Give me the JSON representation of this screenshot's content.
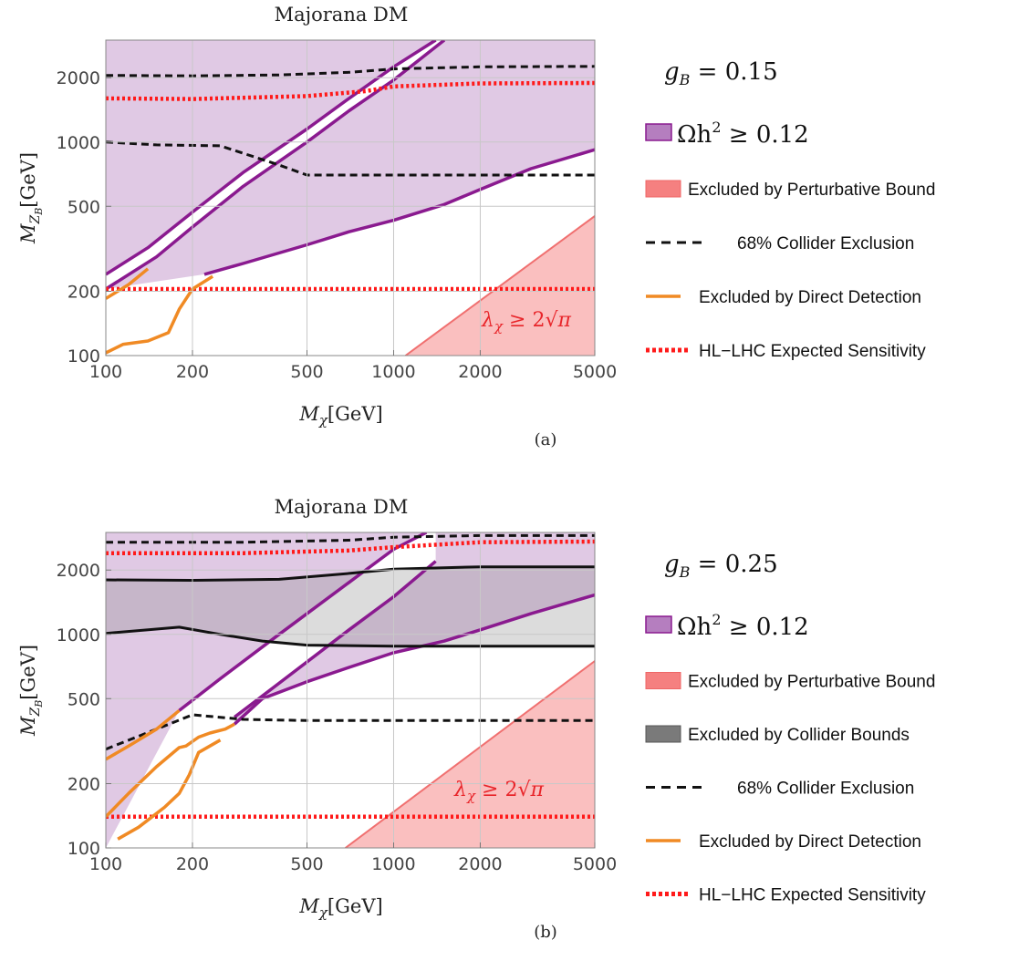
{
  "chart_data": [
    {
      "type": "line",
      "panel": "(a)",
      "title": "Majorana DM",
      "xlabel": "M_χ[GeV]",
      "ylabel": "M_{Z_B}[GeV]",
      "x_scale": "log",
      "y_scale": "log",
      "xlim": [
        100,
        5000
      ],
      "ylim": [
        100,
        3000
      ],
      "x_ticks": [
        "100",
        "200",
        "500",
        "1000",
        "2000",
        "5000"
      ],
      "y_ticks": [
        "100",
        "200",
        "500",
        "1000",
        "2000"
      ],
      "grid": true,
      "legend_position": "right",
      "coupling_label": "g_B = 0.15",
      "annotation": "λ_χ ≥ 2√π",
      "legend": [
        {
          "key": "relic",
          "label": "Ωh² ≥ 0.12",
          "color": "#b57ebf"
        },
        {
          "key": "pert",
          "label": "Excluded by Perturbative Bound",
          "color": "#f58080"
        },
        {
          "key": "coll68",
          "label": "68% Collider Exclusion",
          "color": "#111111"
        },
        {
          "key": "dd",
          "label": "Excluded by Direct Detection",
          "color": "#f08a24"
        },
        {
          "key": "hllhc",
          "label": "HL−LHC Expected Sensitivity",
          "color": "#ff1a1a"
        }
      ],
      "series": [
        {
          "key": "relic_upper_left",
          "x": [
            100,
            140,
            200,
            300,
            500,
            700,
            1000,
            1400
          ],
          "y": [
            240,
            320,
            470,
            720,
            1150,
            1600,
            2250,
            3000
          ]
        },
        {
          "key": "relic_upper_right",
          "x": [
            100,
            150,
            200,
            300,
            500,
            700,
            1000,
            1500
          ],
          "y": [
            205,
            290,
            400,
            620,
            1000,
            1400,
            1950,
            3000
          ]
        },
        {
          "key": "relic_lower",
          "x": [
            220,
            300,
            500,
            700,
            1000,
            1500,
            2000,
            3000,
            5000
          ],
          "y": [
            240,
            270,
            330,
            380,
            430,
            510,
            600,
            750,
            920
          ]
        },
        {
          "key": "coll68_upper",
          "x": [
            100,
            200,
            400,
            700,
            1000,
            2000,
            5000
          ],
          "y": [
            2050,
            2040,
            2060,
            2120,
            2200,
            2250,
            2260
          ]
        },
        {
          "key": "coll68_lower",
          "x": [
            100,
            150,
            250,
            400,
            500,
            1000,
            5000
          ],
          "y": [
            1000,
            970,
            960,
            780,
            700,
            700,
            700
          ]
        },
        {
          "key": "hllhc_upper",
          "x": [
            100,
            200,
            500,
            800,
            1000,
            2000,
            5000
          ],
          "y": [
            1600,
            1590,
            1640,
            1730,
            1820,
            1880,
            1890
          ]
        },
        {
          "key": "hllhc_lower",
          "x": [
            100,
            5000
          ],
          "y": [
            205,
            205
          ]
        },
        {
          "key": "dd_1",
          "x": [
            100,
            120,
            140
          ],
          "y": [
            185,
            215,
            255
          ]
        },
        {
          "key": "dd_2",
          "x": [
            100,
            115,
            140,
            165,
            180,
            200,
            235
          ],
          "y": [
            103,
            113,
            117,
            128,
            165,
            205,
            235
          ]
        }
      ]
    },
    {
      "type": "line",
      "panel": "(b)",
      "title": "Majorana DM",
      "xlabel": "M_χ[GeV]",
      "ylabel": "M_{Z_B}[GeV]",
      "x_scale": "log",
      "y_scale": "log",
      "xlim": [
        100,
        5000
      ],
      "ylim": [
        100,
        3000
      ],
      "x_ticks": [
        "100",
        "200",
        "500",
        "1000",
        "2000",
        "5000"
      ],
      "y_ticks": [
        "100",
        "200",
        "500",
        "1000",
        "2000"
      ],
      "grid": true,
      "legend_position": "right",
      "coupling_label": "g_B = 0.25",
      "annotation": "λ_χ ≥ 2√π",
      "legend": [
        {
          "key": "relic",
          "label": "Ωh² ≥ 0.12",
          "color": "#b57ebf"
        },
        {
          "key": "pert",
          "label": "Excluded by Perturbative Bound",
          "color": "#f58080"
        },
        {
          "key": "collb",
          "label": "Excluded by Collider Bounds",
          "color": "#7a7a7a"
        },
        {
          "key": "coll68",
          "label": "68% Collider Exclusion",
          "color": "#111111"
        },
        {
          "key": "dd",
          "label": "Excluded by Direct Detection",
          "color": "#f08a24"
        },
        {
          "key": "hllhc",
          "label": "HL−LHC Expected Sensitivity",
          "color": "#ff1a1a"
        }
      ],
      "series": [
        {
          "key": "relic_upper_left",
          "x": [
            180,
            250,
            400,
            700,
            1000,
            1300
          ],
          "y": [
            440,
            620,
            1000,
            1750,
            2500,
            3000
          ]
        },
        {
          "key": "relic_upper_right",
          "x": [
            280,
            400,
            700,
            1000,
            1400
          ],
          "y": [
            410,
            590,
            1050,
            1500,
            2200
          ]
        },
        {
          "key": "relic_lower",
          "x": [
            280,
            350,
            500,
            700,
            1000,
            1500,
            2000,
            3000,
            5000
          ],
          "y": [
            380,
            500,
            600,
            700,
            820,
            930,
            1050,
            1250,
            1530
          ]
        },
        {
          "key": "collb_upper",
          "x": [
            100,
            200,
            400,
            700,
            1000,
            2000,
            5000
          ],
          "y": [
            1800,
            1790,
            1810,
            1930,
            2020,
            2070,
            2070
          ]
        },
        {
          "key": "collb_lower",
          "x": [
            100,
            180,
            250,
            350,
            500,
            1000,
            5000
          ],
          "y": [
            1010,
            1080,
            1000,
            930,
            890,
            880,
            880
          ]
        },
        {
          "key": "coll68_upper",
          "x": [
            100,
            300,
            700,
            1000,
            2000,
            5000
          ],
          "y": [
            2700,
            2700,
            2760,
            2850,
            2900,
            2900
          ]
        },
        {
          "key": "coll68_lower",
          "x": [
            100,
            150,
            200,
            300,
            500,
            1000,
            5000
          ],
          "y": [
            290,
            360,
            420,
            400,
            395,
            395,
            395
          ]
        },
        {
          "key": "hllhc_upper",
          "x": [
            100,
            300,
            700,
            1000,
            2000,
            5000
          ],
          "y": [
            2400,
            2400,
            2470,
            2560,
            2700,
            2720
          ]
        },
        {
          "key": "hllhc_lower",
          "x": [
            100,
            5000
          ],
          "y": [
            140,
            140
          ]
        },
        {
          "key": "dd_1",
          "x": [
            100,
            120,
            150,
            180
          ],
          "y": [
            260,
            300,
            360,
            440
          ]
        },
        {
          "key": "dd_2",
          "x": [
            100,
            120,
            150,
            180,
            190,
            210,
            230,
            260,
            280
          ],
          "y": [
            140,
            180,
            240,
            295,
            300,
            330,
            345,
            360,
            380
          ]
        },
        {
          "key": "dd_3",
          "x": [
            110,
            130,
            160,
            180,
            195,
            210,
            250
          ],
          "y": [
            110,
            125,
            155,
            180,
            220,
            280,
            320
          ]
        }
      ]
    }
  ]
}
